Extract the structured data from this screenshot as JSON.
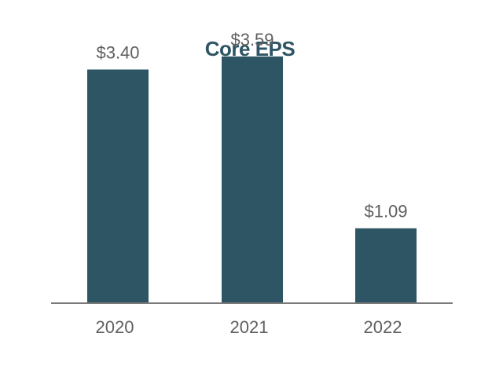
{
  "chart_data": {
    "type": "bar",
    "title": "Core EPS",
    "categories": [
      "2020",
      "2021",
      "2022"
    ],
    "values": [
      3.4,
      3.59,
      1.09
    ],
    "value_labels": [
      "$3.40",
      "$3.59",
      "$1.09"
    ],
    "xlabel": "",
    "ylabel": "",
    "ylim": [
      0,
      4
    ],
    "grid": false,
    "legend": "none"
  },
  "colors": {
    "bar": "#2e5563",
    "title": "#2e5563",
    "axis": "#7a7a7a",
    "label": "#5f5f5f"
  }
}
